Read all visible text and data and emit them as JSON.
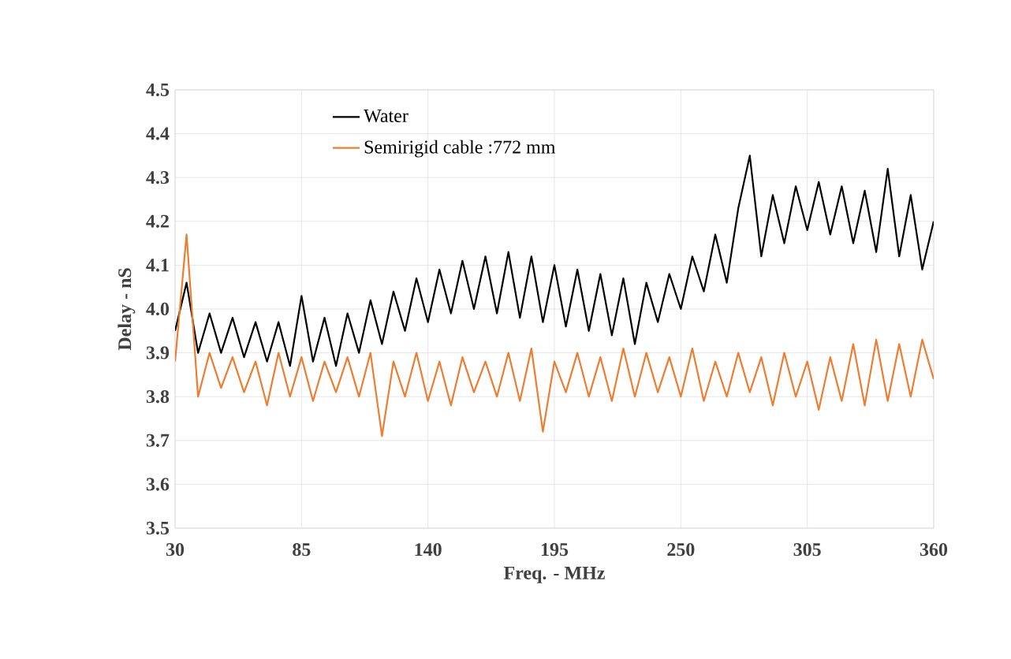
{
  "chart_data": {
    "type": "line",
    "xlabel": "Freq. - MHz",
    "ylabel": "Delay - nS",
    "x": [
      30,
      35,
      40,
      45,
      50,
      55,
      60,
      65,
      70,
      75,
      80,
      85,
      90,
      95,
      100,
      105,
      110,
      115,
      120,
      125,
      130,
      135,
      140,
      145,
      150,
      155,
      160,
      165,
      170,
      175,
      180,
      185,
      190,
      195,
      200,
      205,
      210,
      215,
      220,
      225,
      230,
      235,
      240,
      245,
      250,
      255,
      260,
      265,
      270,
      275,
      280,
      285,
      290,
      295,
      300,
      305,
      310,
      315,
      320,
      325,
      330,
      335,
      340,
      345,
      350,
      355,
      360
    ],
    "series": [
      {
        "name": "Water",
        "color": "#000000",
        "values": [
          3.95,
          4.06,
          3.9,
          3.99,
          3.9,
          3.98,
          3.89,
          3.97,
          3.88,
          3.97,
          3.87,
          4.03,
          3.88,
          3.98,
          3.87,
          3.99,
          3.9,
          4.02,
          3.92,
          4.04,
          3.95,
          4.07,
          3.97,
          4.09,
          3.99,
          4.11,
          4.0,
          4.12,
          3.99,
          4.13,
          3.98,
          4.12,
          3.97,
          4.1,
          3.96,
          4.09,
          3.95,
          4.08,
          3.94,
          4.07,
          3.92,
          4.06,
          3.97,
          4.08,
          4.0,
          4.12,
          4.04,
          4.17,
          4.06,
          4.23,
          4.35,
          4.12,
          4.26,
          4.15,
          4.28,
          4.18,
          4.29,
          4.17,
          4.28,
          4.15,
          4.27,
          4.13,
          4.32,
          4.12,
          4.26,
          4.09,
          4.2
        ]
      },
      {
        "name": "Semirigid cable :772 mm",
        "color": "#ed7d31",
        "values": [
          3.88,
          4.17,
          3.8,
          3.9,
          3.82,
          3.89,
          3.81,
          3.88,
          3.78,
          3.9,
          3.8,
          3.89,
          3.79,
          3.88,
          3.81,
          3.89,
          3.8,
          3.9,
          3.71,
          3.88,
          3.8,
          3.9,
          3.79,
          3.88,
          3.78,
          3.89,
          3.81,
          3.88,
          3.8,
          3.9,
          3.79,
          3.91,
          3.72,
          3.88,
          3.81,
          3.9,
          3.8,
          3.89,
          3.79,
          3.91,
          3.8,
          3.9,
          3.81,
          3.89,
          3.8,
          3.91,
          3.79,
          3.88,
          3.8,
          3.9,
          3.81,
          3.89,
          3.78,
          3.9,
          3.8,
          3.88,
          3.77,
          3.89,
          3.79,
          3.92,
          3.78,
          3.93,
          3.79,
          3.92,
          3.8,
          3.93,
          3.84
        ]
      }
    ],
    "xlim": [
      30,
      360
    ],
    "xticks": [
      30,
      85,
      140,
      195,
      250,
      305,
      360
    ],
    "ylim": [
      3.5,
      4.5
    ],
    "yticks": [
      3.5,
      3.6,
      3.7,
      3.8,
      3.9,
      {
        "value": 4.0,
        "label": "4.0"
      },
      4.1,
      4.2,
      4.3,
      4.4,
      4.5
    ],
    "grid": true,
    "legend": "top left",
    "marker": "none",
    "line_style": "solid"
  }
}
